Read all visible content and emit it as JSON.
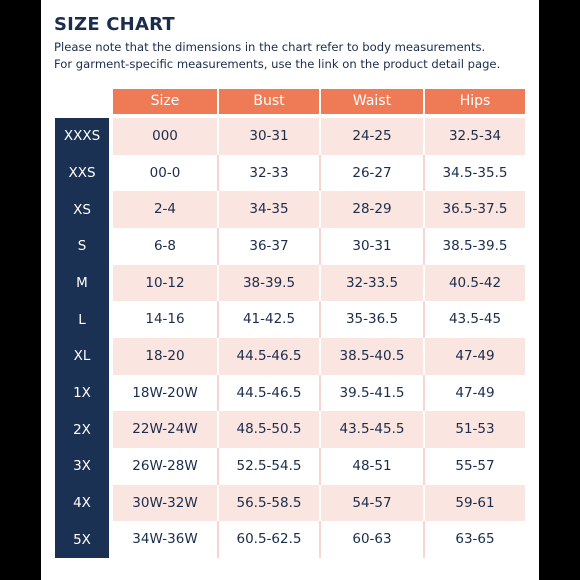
{
  "title": "SIZE CHART",
  "note": {
    "line1": "Please note that the dimensions in the chart refer to body measurements.",
    "line2": "For garment-specific measurements, use the link on the product detail page."
  },
  "columns": [
    "Size",
    "Bust",
    "Waist",
    "Hips"
  ],
  "colors": {
    "header": "#ee7b56",
    "sidebar": "#1b3154",
    "shaded_row": "#fae5e0",
    "text": "#1b2d4d"
  },
  "rows": [
    {
      "label": "XXXS",
      "size": "000",
      "bust": "30-31",
      "waist": "24-25",
      "hips": "32.5-34"
    },
    {
      "label": "XXS",
      "size": "00-0",
      "bust": "32-33",
      "waist": "26-27",
      "hips": "34.5-35.5"
    },
    {
      "label": "XS",
      "size": "2-4",
      "bust": "34-35",
      "waist": "28-29",
      "hips": "36.5-37.5"
    },
    {
      "label": "S",
      "size": "6-8",
      "bust": "36-37",
      "waist": "30-31",
      "hips": "38.5-39.5"
    },
    {
      "label": "M",
      "size": "10-12",
      "bust": "38-39.5",
      "waist": "32-33.5",
      "hips": "40.5-42"
    },
    {
      "label": "L",
      "size": "14-16",
      "bust": "41-42.5",
      "waist": "35-36.5",
      "hips": "43.5-45"
    },
    {
      "label": "XL",
      "size": "18-20",
      "bust": "44.5-46.5",
      "waist": "38.5-40.5",
      "hips": "47-49"
    },
    {
      "label": "1X",
      "size": "18W-20W",
      "bust": "44.5-46.5",
      "waist": "39.5-41.5",
      "hips": "47-49"
    },
    {
      "label": "2X",
      "size": "22W-24W",
      "bust": "48.5-50.5",
      "waist": "43.5-45.5",
      "hips": "51-53"
    },
    {
      "label": "3X",
      "size": "26W-28W",
      "bust": "52.5-54.5",
      "waist": "48-51",
      "hips": "55-57"
    },
    {
      "label": "4X",
      "size": "30W-32W",
      "bust": "56.5-58.5",
      "waist": "54-57",
      "hips": "59-61"
    },
    {
      "label": "5X",
      "size": "34W-36W",
      "bust": "60.5-62.5",
      "waist": "60-63",
      "hips": "63-65"
    }
  ]
}
